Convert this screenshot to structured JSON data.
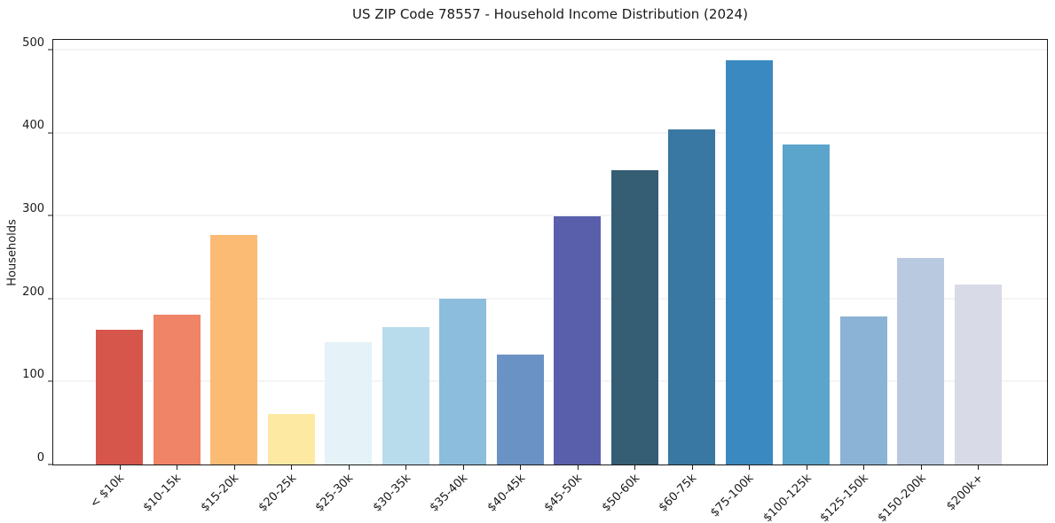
{
  "chart": {
    "title": "US ZIP Code 78557 - Household Income Distribution (2024)",
    "ylabel": "Households"
  },
  "chart_data": {
    "type": "bar",
    "title": "US ZIP Code 78557 - Household Income Distribution (2024)",
    "xlabel": "",
    "ylabel": "Households",
    "categories": [
      "< $10k",
      "$10-15k",
      "$15-20k",
      "$20-25k",
      "$25-30k",
      "$30-35k",
      "$35-40k",
      "$40-45k",
      "$45-50k",
      "$50-60k",
      "$60-75k",
      "$75-100k",
      "$100-125k",
      "$125-150k",
      "$150-200k",
      "$200k+"
    ],
    "values": [
      162,
      181,
      277,
      61,
      147,
      166,
      200,
      133,
      299,
      355,
      404,
      487,
      386,
      178,
      249,
      217
    ],
    "bar_colors": [
      "#d6564c",
      "#f08466",
      "#fbbb74",
      "#fde9a2",
      "#e5f2f8",
      "#b9dcec",
      "#8cbddc",
      "#6b92c5",
      "#5a5fab",
      "#355d74",
      "#3878a2",
      "#3a8ac1",
      "#5ba4cb",
      "#8bb3d5",
      "#b8c9e0",
      "#d9dae8"
    ],
    "yticks": [
      0,
      100,
      200,
      300,
      400,
      500
    ],
    "ylim": [
      0,
      512
    ],
    "grid": "horizontal",
    "grid_color": "#e8e8ec",
    "background": "#ffffff",
    "x_tick_rotation_deg": 45,
    "legend": "none"
  }
}
